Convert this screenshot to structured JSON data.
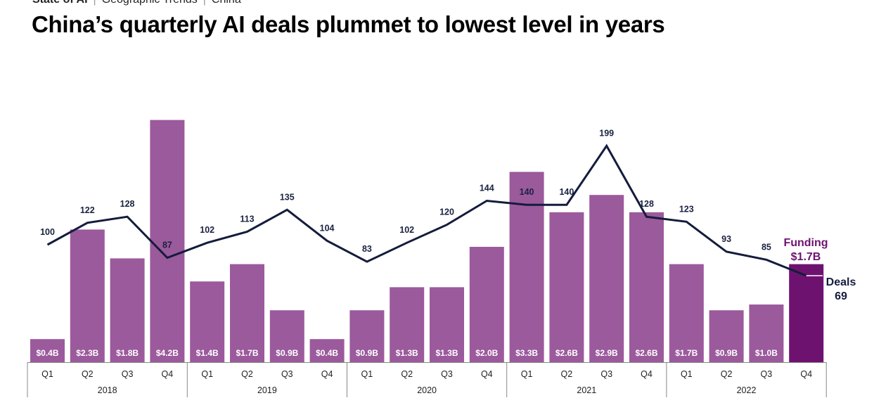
{
  "breadcrumb": {
    "items": [
      "State of AI",
      "Geographic Trends",
      "China"
    ]
  },
  "title": "China’s quarterly AI deals plummet to lowest level in years",
  "colors": {
    "bar": "#9b5a9c",
    "bar_highlight": "#6e1270",
    "line": "#141c3c",
    "funding_callout": "#6e1270",
    "deals_callout": "#141c3c"
  },
  "callouts": {
    "funding_label": "Funding",
    "funding_value": "$1.7B",
    "deals_label": "Deals",
    "deals_value": "69"
  },
  "chart_data": {
    "type": "bar",
    "categories": [
      "Q1",
      "Q2",
      "Q3",
      "Q4",
      "Q1",
      "Q2",
      "Q3",
      "Q4",
      "Q1",
      "Q2",
      "Q3",
      "Q4",
      "Q1",
      "Q2",
      "Q3",
      "Q4",
      "Q1",
      "Q2",
      "Q3",
      "Q4"
    ],
    "years": [
      "2018",
      "2019",
      "2020",
      "2021",
      "2022"
    ],
    "series": [
      {
        "type": "bar",
        "values": [
          0.4,
          2.3,
          1.8,
          4.2,
          1.4,
          1.7,
          0.9,
          0.4,
          0.9,
          1.3,
          1.3,
          2.0,
          3.3,
          2.6,
          2.9,
          2.6,
          1.7,
          0.9,
          1.0,
          1.7
        ],
        "labels": [
          "$0.4B",
          "$2.3B",
          "$1.8B",
          "$4.2B",
          "$1.4B",
          "$1.7B",
          "$0.9B",
          "$0.4B",
          "$0.9B",
          "$1.3B",
          "$1.3B",
          "$2.0B",
          "$3.3B",
          "$2.6B",
          "$2.9B",
          "$2.6B",
          "$1.7B",
          "$0.9B",
          "$1.0B",
          ""
        ]
      },
      {
        "type": "line",
        "values": [
          100,
          122,
          128,
          87,
          102,
          113,
          135,
          104,
          83,
          102,
          120,
          144,
          140,
          140,
          199,
          128,
          123,
          93,
          85,
          69
        ],
        "labels": [
          "100",
          "122",
          "128",
          "87",
          "102",
          "113",
          "135",
          "104",
          "83",
          "102",
          "120",
          "144",
          "140",
          "140",
          "199",
          "128",
          "123",
          "93",
          "85",
          ""
        ]
      }
    ],
    "highlight_index": 19,
    "grid": false,
    "legend": "none"
  }
}
